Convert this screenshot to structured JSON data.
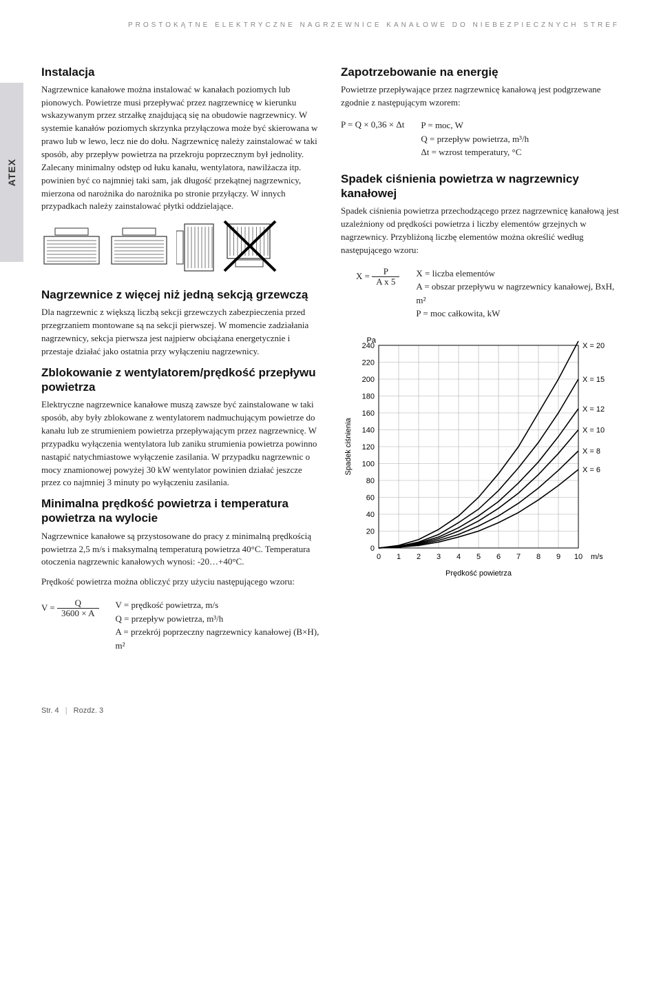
{
  "page_header": "PROSTOKĄTNE ELEKTRYCZNE NAGRZEWNICE KANAŁOWE DO NIEBEZPIECZNYCH STREF",
  "side_tab": "ATEX",
  "left": {
    "h_instalacja": "Instalacja",
    "p_instalacja": "Nagrzewnice kanałowe można instalować w kanałach poziomych lub pionowych. Powietrze musi przepływać przez nagrzewnicę w kierunku wskazywanym przez strzałkę znajdującą się na obudowie nagrzewnicy. W systemie kanałów poziomych skrzynka przyłączowa może być skierowana w prawo lub w lewo, lecz nie do dołu. Nagrzewnicę należy zainstalować w taki sposób, aby przepływ powietrza na przekroju poprzecznym był jednolity. Zalecany minimalny odstęp od łuku kanału, wentylatora, nawilżacza itp. powinien być co najmniej taki sam, jak długość przekątnej nagrzewnicy, mierzona od narożnika do narożnika po stronie przyłączy. W innych przypadkach należy zainstalować płytki oddzielające.",
    "h_sekcje": "Nagrzewnice z więcej niż jedną sekcją grzewczą",
    "p_sekcje": "Dla nagrzewnic z większą liczbą sekcji grzewczych zabezpieczenia przed przegrzaniem montowane są na sekcji pierwszej. W momencie zadziałania nagrzewnicy, sekcja pierwsza jest najpierw obciążana energetycznie i przestaje działać jako ostatnia przy wyłączeniu nagrzewnicy.",
    "h_zblok": "Zblokowanie z wentylatorem/prędkość przepływu powietrza",
    "p_zblok": "Elektryczne nagrzewnice kanałowe muszą zawsze być zainstalowane w taki sposób, aby były zblokowane z wentylatorem nadmuchującym powietrze do kanału lub ze strumieniem powietrza przepływającym przez nagrzewnicę.\nW przypadku wyłączenia wentylatora lub zaniku strumienia powietrza powinno nastąpić natychmiastowe wyłączenie zasilania. W przypadku nagrzewnic o mocy znamionowej powyżej 30 kW wentylator powinien działać jeszcze przez co najmniej 3 minuty po wyłączeniu zasilania.",
    "h_min": "Minimalna prędkość powietrza i temperatura powietrza na wylocie",
    "p_min": "Nagrzewnice kanałowe są przystosowane do pracy z minimalną prędkością powietrza 2,5 m/s i maksymalną temperaturą powietrza 40°C.\nTemperatura otoczenia nagrzewnic kanałowych wynosi: -20…+40°C.",
    "p_formula_intro": "Prędkość powietrza można obliczyć przy użyciu następującego wzoru:",
    "formula_v_lhs": "V =",
    "formula_v_num": "Q",
    "formula_v_den": "3600 × A",
    "formula_v_legend_1": "V = prędkość powietrza, m/s",
    "formula_v_legend_2": "Q = przepływ powietrza, m³/h",
    "formula_v_legend_3": "A = przekrój poprzeczny nagrzewnicy kanałowej (B×H), m²"
  },
  "right": {
    "h_zap": "Zapotrzebowanie na energię",
    "p_zap": "Powietrze przepływające przez nagrzewnicę kanałową jest podgrzewane zgodnie z następującym wzorem:",
    "formula_p": "P = Q × 0,36 × Δt",
    "formula_p_legend_1": "P = moc, W",
    "formula_p_legend_2": "Q = przepływ powietrza, m³/h",
    "formula_p_legend_3": "Δt = wzrost temperatury, °C",
    "h_spadek": "Spadek ciśnienia powietrza w nagrzewnicy kanałowej",
    "p_spadek": "Spadek ciśnienia powietrza przechodzącego przez nagrzewnicę kanałową jest uzależniony od prędkości powietrza i liczby elementów grzejnych w nagrzewnicy. Przybliżoną liczbę elementów można określić według następującego wzoru:",
    "formula_x_lhs": "X =",
    "formula_x_num": "P",
    "formula_x_den": "A x 5",
    "formula_x_legend_1": "X = liczba elementów",
    "formula_x_legend_2": "A = obszar przepływu w nagrzewnicy kanałowej, BxH, m²",
    "formula_x_legend_3": "P = moc całkowita, kW"
  },
  "diagram_colors": {
    "stroke": "#333333",
    "fill_light": "#ffffff",
    "hatch": "#777777",
    "cross": "#000000"
  },
  "chart": {
    "type": "line",
    "xlabel": "Prędkość powietrza",
    "ylabel": "Spadek ciśnienia",
    "y_unit": "Pa",
    "x_unit": "m/s",
    "xlim": [
      0,
      10
    ],
    "ylim": [
      0,
      240
    ],
    "xtick_step": 1,
    "ytick_step": 20,
    "background_color": "#ffffff",
    "grid_color": "#aaaaaa",
    "axis_color": "#000000",
    "line_color": "#000000",
    "line_width": 1.6,
    "label_fontsize": 11,
    "tick_fontsize": 11,
    "series": [
      {
        "label": "X = 20",
        "points": [
          [
            0,
            0
          ],
          [
            1,
            3
          ],
          [
            2,
            10
          ],
          [
            3,
            22
          ],
          [
            4,
            38
          ],
          [
            5,
            60
          ],
          [
            6,
            88
          ],
          [
            7,
            120
          ],
          [
            8,
            160
          ],
          [
            9,
            200
          ],
          [
            10,
            245
          ]
        ]
      },
      {
        "label": "X = 15",
        "points": [
          [
            0,
            0
          ],
          [
            1,
            2
          ],
          [
            2,
            7
          ],
          [
            3,
            16
          ],
          [
            4,
            30
          ],
          [
            5,
            46
          ],
          [
            6,
            68
          ],
          [
            7,
            95
          ],
          [
            8,
            125
          ],
          [
            9,
            160
          ],
          [
            10,
            200
          ]
        ]
      },
      {
        "label": "X = 12",
        "points": [
          [
            0,
            0
          ],
          [
            1,
            2
          ],
          [
            2,
            6
          ],
          [
            3,
            13
          ],
          [
            4,
            24
          ],
          [
            5,
            38
          ],
          [
            6,
            55
          ],
          [
            7,
            77
          ],
          [
            8,
            102
          ],
          [
            9,
            132
          ],
          [
            10,
            165
          ]
        ]
      },
      {
        "label": "X = 10",
        "points": [
          [
            0,
            0
          ],
          [
            1,
            1.5
          ],
          [
            2,
            5
          ],
          [
            3,
            11
          ],
          [
            4,
            20
          ],
          [
            5,
            32
          ],
          [
            6,
            47
          ],
          [
            7,
            65
          ],
          [
            8,
            87
          ],
          [
            9,
            112
          ],
          [
            10,
            140
          ]
        ]
      },
      {
        "label": "X = 8",
        "points": [
          [
            0,
            0
          ],
          [
            1,
            1
          ],
          [
            2,
            4
          ],
          [
            3,
            9
          ],
          [
            4,
            16
          ],
          [
            5,
            26
          ],
          [
            6,
            38
          ],
          [
            7,
            53
          ],
          [
            8,
            71
          ],
          [
            9,
            92
          ],
          [
            10,
            115
          ]
        ]
      },
      {
        "label": "X = 6",
        "points": [
          [
            0,
            0
          ],
          [
            1,
            1
          ],
          [
            2,
            3
          ],
          [
            3,
            7
          ],
          [
            4,
            13
          ],
          [
            5,
            20
          ],
          [
            6,
            30
          ],
          [
            7,
            42
          ],
          [
            8,
            57
          ],
          [
            9,
            74
          ],
          [
            10,
            93
          ]
        ]
      }
    ]
  },
  "footer": {
    "page": "Str. 4",
    "chapter": "Rozdz. 3"
  }
}
